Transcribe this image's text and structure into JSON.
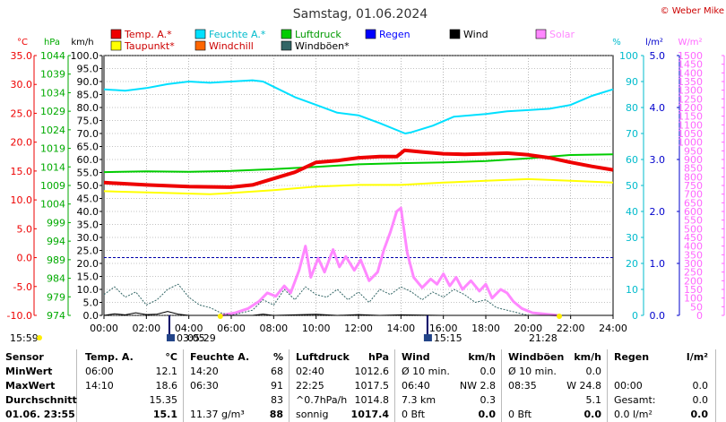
{
  "header": {
    "title": "Samstag, 01.06.2024",
    "copyright": "© Weber Mike"
  },
  "legend": {
    "items": [
      {
        "label": "Temp. A.*",
        "color": "#ee0000",
        "col": 0,
        "row": 0
      },
      {
        "label": "Taupunkt*",
        "color": "#ffff00",
        "col": 0,
        "row": 1
      },
      {
        "label": "Feuchte A.*",
        "color": "#00e0ff",
        "col": 1,
        "row": 0
      },
      {
        "label": "Windchill",
        "color": "#ff6600",
        "col": 1,
        "row": 1
      },
      {
        "label": "Luftdruck",
        "color": "#00cc00",
        "col": 2,
        "row": 0
      },
      {
        "label": "Windböen*",
        "color": "#336666",
        "col": 2,
        "row": 1
      },
      {
        "label": "Regen",
        "color": "#0000ff",
        "col": 3,
        "row": 0
      },
      {
        "label": "Wind",
        "color": "#000000",
        "col": 4,
        "row": 0
      },
      {
        "label": "Solar",
        "color": "#ff88ff",
        "col": 5,
        "row": 0
      }
    ]
  },
  "chart_data": {
    "type": "line",
    "x_range": [
      "00:00",
      "24:00"
    ],
    "x_ticks": [
      "00:00",
      "02:00",
      "04:00",
      "06:00",
      "08:00",
      "10:00",
      "12:00",
      "14:00",
      "16:00",
      "18:00",
      "20:00",
      "22:00",
      "24:00"
    ],
    "axes": {
      "temp": {
        "unit": "°C",
        "color": "#ee0000",
        "ticks": [
          "35.0",
          "30.0",
          "25.0",
          "20.0",
          "15.0",
          "10.0",
          "5.0",
          "0.0",
          "-5.0",
          "-10.0"
        ],
        "range": [
          -10,
          35
        ]
      },
      "pressure": {
        "unit": "hPa",
        "color": "#00aa00",
        "ticks": [
          "1044",
          "1039",
          "1034",
          "1029",
          "1024",
          "1019",
          "1014",
          "1009",
          "1004",
          "999",
          "994",
          "989",
          "984",
          "979",
          "974"
        ],
        "range": [
          974,
          1044
        ]
      },
      "wind": {
        "unit": "km/h",
        "color": "#000000",
        "ticks": [
          "100.0",
          "95.0",
          "90.0",
          "85.0",
          "80.0",
          "75.0",
          "70.0",
          "65.0",
          "60.0",
          "55.0",
          "50.0",
          "45.0",
          "40.0",
          "35.0",
          "30.0",
          "25.0",
          "20.0",
          "15.0",
          "10.0",
          "5.0",
          "0.0"
        ],
        "range": [
          0,
          100
        ]
      },
      "humidity": {
        "unit": "%",
        "color": "#00ccdd",
        "ticks": [
          "100",
          "90",
          "80",
          "70",
          "60",
          "50",
          "40",
          "30",
          "20",
          "10",
          "0"
        ],
        "range": [
          0,
          100
        ]
      },
      "rain": {
        "unit": "l/m²",
        "color": "#0000cc",
        "ticks": [
          "5.0",
          "4.0",
          "3.0",
          "2.0",
          "1.0",
          "0.0"
        ],
        "range": [
          0,
          5
        ]
      },
      "solar": {
        "unit": "W/m²",
        "color": "#ff66ff",
        "ticks": [
          "1500",
          "1450",
          "1400",
          "1350",
          "1300",
          "1250",
          "1200",
          "1150",
          "1100",
          "1050",
          "1000",
          "950",
          "900",
          "850",
          "800",
          "750",
          "700",
          "650",
          "600",
          "550",
          "500",
          "450",
          "400",
          "350",
          "300",
          "250",
          "200",
          "150",
          "100",
          "50",
          "0"
        ],
        "range": [
          0,
          1500
        ]
      }
    },
    "series": [
      {
        "name": "Temp. A.*",
        "axis": "temp",
        "color": "#ee0000",
        "width": 4,
        "points": [
          [
            0,
            13.0
          ],
          [
            2,
            12.6
          ],
          [
            4,
            12.3
          ],
          [
            6,
            12.2
          ],
          [
            7,
            12.6
          ],
          [
            8,
            13.7
          ],
          [
            9,
            14.8
          ],
          [
            10,
            16.5
          ],
          [
            11,
            16.8
          ],
          [
            12,
            17.3
          ],
          [
            13,
            17.5
          ],
          [
            13.8,
            17.5
          ],
          [
            14.17,
            18.6
          ],
          [
            15,
            18.3
          ],
          [
            16,
            18.0
          ],
          [
            17,
            17.9
          ],
          [
            18,
            18.0
          ],
          [
            19,
            18.1
          ],
          [
            20,
            17.8
          ],
          [
            21,
            17.3
          ],
          [
            22,
            16.5
          ],
          [
            23,
            15.8
          ],
          [
            24,
            15.2
          ]
        ]
      },
      {
        "name": "Taupunkt*",
        "axis": "temp",
        "color": "#ffff00",
        "width": 2,
        "points": [
          [
            0,
            11.5
          ],
          [
            3,
            11.2
          ],
          [
            5,
            11.0
          ],
          [
            6,
            11.2
          ],
          [
            8,
            11.7
          ],
          [
            10,
            12.3
          ],
          [
            12,
            12.6
          ],
          [
            14,
            12.6
          ],
          [
            16,
            13.0
          ],
          [
            18,
            13.3
          ],
          [
            20,
            13.6
          ],
          [
            22,
            13.3
          ],
          [
            24,
            13.0
          ]
        ]
      },
      {
        "name": "Luftdruck",
        "axis": "pressure",
        "color": "#00cc00",
        "width": 2,
        "points": [
          [
            0,
            1012.6
          ],
          [
            2,
            1012.8
          ],
          [
            4,
            1012.7
          ],
          [
            6,
            1012.9
          ],
          [
            8,
            1013.4
          ],
          [
            10,
            1014.0
          ],
          [
            12,
            1014.7
          ],
          [
            14,
            1015.0
          ],
          [
            16,
            1015.2
          ],
          [
            18,
            1015.6
          ],
          [
            20,
            1016.3
          ],
          [
            22,
            1017.2
          ],
          [
            24,
            1017.4
          ]
        ]
      },
      {
        "name": "Feuchte A.*",
        "axis": "humidity",
        "color": "#00e0ff",
        "width": 2,
        "points": [
          [
            0,
            87
          ],
          [
            1,
            86.5
          ],
          [
            2,
            87.5
          ],
          [
            3,
            89
          ],
          [
            4,
            90
          ],
          [
            5,
            89.5
          ],
          [
            6,
            90
          ],
          [
            7,
            90.5
          ],
          [
            7.5,
            90
          ],
          [
            8,
            88
          ],
          [
            9,
            84
          ],
          [
            10,
            81
          ],
          [
            11,
            78
          ],
          [
            12,
            77
          ],
          [
            13,
            74
          ],
          [
            14.2,
            70
          ],
          [
            14.5,
            70.5
          ],
          [
            15.5,
            73
          ],
          [
            16.5,
            76.5
          ],
          [
            18,
            77.5
          ],
          [
            19,
            78.5
          ],
          [
            20,
            79
          ],
          [
            21,
            79.5
          ],
          [
            22,
            81
          ],
          [
            23,
            84.5
          ],
          [
            24,
            87
          ]
        ]
      },
      {
        "name": "Solar",
        "axis": "solar",
        "color": "#ff88ff",
        "width": 3,
        "points": [
          [
            5.5,
            0
          ],
          [
            6.2,
            15
          ],
          [
            6.8,
            40
          ],
          [
            7.3,
            80
          ],
          [
            7.7,
            130
          ],
          [
            8.1,
            110
          ],
          [
            8.5,
            170
          ],
          [
            8.8,
            130
          ],
          [
            9.2,
            260
          ],
          [
            9.5,
            400
          ],
          [
            9.75,
            220
          ],
          [
            10.1,
            330
          ],
          [
            10.4,
            250
          ],
          [
            10.8,
            380
          ],
          [
            11.1,
            280
          ],
          [
            11.4,
            340
          ],
          [
            11.8,
            260
          ],
          [
            12.1,
            320
          ],
          [
            12.5,
            200
          ],
          [
            12.9,
            250
          ],
          [
            13.2,
            380
          ],
          [
            13.5,
            480
          ],
          [
            13.8,
            600
          ],
          [
            14.0,
            620
          ],
          [
            14.3,
            360
          ],
          [
            14.6,
            220
          ],
          [
            15.0,
            160
          ],
          [
            15.4,
            210
          ],
          [
            15.7,
            180
          ],
          [
            16.0,
            240
          ],
          [
            16.3,
            170
          ],
          [
            16.6,
            220
          ],
          [
            16.9,
            150
          ],
          [
            17.3,
            200
          ],
          [
            17.7,
            140
          ],
          [
            18.0,
            180
          ],
          [
            18.3,
            100
          ],
          [
            18.7,
            150
          ],
          [
            19.0,
            130
          ],
          [
            19.3,
            80
          ],
          [
            19.7,
            40
          ],
          [
            20.2,
            15
          ],
          [
            21.0,
            5
          ],
          [
            21.4,
            0
          ]
        ]
      },
      {
        "name": "Windböen*",
        "axis": "wind",
        "color": "#336666",
        "width": 1,
        "dash": true,
        "points": [
          [
            0,
            8
          ],
          [
            0.5,
            11
          ],
          [
            1,
            7
          ],
          [
            1.5,
            9
          ],
          [
            2,
            4
          ],
          [
            2.5,
            6
          ],
          [
            3,
            10
          ],
          [
            3.5,
            12
          ],
          [
            4,
            7
          ],
          [
            4.5,
            4
          ],
          [
            5,
            3
          ],
          [
            5.5,
            1
          ],
          [
            6,
            0
          ],
          [
            7,
            2
          ],
          [
            7.5,
            6
          ],
          [
            8,
            4
          ],
          [
            8.5,
            10
          ],
          [
            9,
            6
          ],
          [
            9.5,
            11
          ],
          [
            10,
            8
          ],
          [
            10.5,
            7
          ],
          [
            11,
            10
          ],
          [
            11.5,
            6
          ],
          [
            12,
            9
          ],
          [
            12.5,
            5
          ],
          [
            13,
            10
          ],
          [
            13.5,
            8
          ],
          [
            14,
            11
          ],
          [
            14.5,
            9
          ],
          [
            15,
            6
          ],
          [
            15.5,
            9
          ],
          [
            16,
            7
          ],
          [
            16.5,
            10
          ],
          [
            17,
            8
          ],
          [
            17.5,
            5
          ],
          [
            18,
            6
          ],
          [
            18.5,
            3
          ],
          [
            19,
            2
          ],
          [
            19.5,
            1
          ],
          [
            20,
            0
          ],
          [
            24,
            0
          ]
        ]
      },
      {
        "name": "Wind",
        "axis": "wind",
        "color": "#000000",
        "width": 1,
        "points": [
          [
            0,
            0
          ],
          [
            0.5,
            0.6
          ],
          [
            1,
            0.2
          ],
          [
            1.5,
            1
          ],
          [
            2,
            0.3
          ],
          [
            2.5,
            0.5
          ],
          [
            3,
            1.5
          ],
          [
            3.5,
            0.5
          ],
          [
            4,
            0
          ],
          [
            7,
            0
          ],
          [
            7.5,
            0.5
          ],
          [
            8,
            0
          ],
          [
            10,
            0.4
          ],
          [
            11,
            0
          ],
          [
            12,
            0.3
          ],
          [
            13,
            0
          ],
          [
            14,
            0.2
          ],
          [
            16,
            0
          ],
          [
            24,
            0
          ]
        ]
      }
    ],
    "reference_lines": [
      {
        "axis": "temp",
        "value": 0.0,
        "color": "#0000aa",
        "dash": true
      }
    ]
  },
  "markers": {
    "sunrise": "05:29",
    "sunset": "21:28",
    "moonrise": "03:05",
    "moonset": "15:15",
    "left_time": "15:59"
  },
  "table": {
    "headers": [
      {
        "text": "Sensor",
        "col": "c0"
      },
      {
        "text": "Temp. A.",
        "col": "c1"
      },
      {
        "text": "°C",
        "col": "c1r"
      },
      {
        "text": "Feuchte A.",
        "col": "c2"
      },
      {
        "text": "%",
        "col": "c2r"
      },
      {
        "text": "Luftdruck",
        "col": "c3"
      },
      {
        "text": "hPa",
        "col": "c3r"
      },
      {
        "text": "Wind",
        "col": "c4"
      },
      {
        "text": "km/h",
        "col": "c4r"
      },
      {
        "text": "Windböen",
        "col": "c5"
      },
      {
        "text": "km/h",
        "col": "c5r"
      },
      {
        "text": "Regen",
        "col": "c6"
      },
      {
        "text": "l/m²",
        "col": "c6r"
      }
    ],
    "rows": [
      {
        "label": "MinWert",
        "cells": [
          "06:00",
          "12.1",
          "14:20",
          "68",
          "02:40",
          "1012.6",
          "Ø 10 min.",
          "0.0",
          "Ø 10 min.",
          "0.0",
          "",
          ""
        ]
      },
      {
        "label": "MaxWert",
        "cells": [
          "14:10",
          "18.6",
          "06:30",
          "91",
          "22:25",
          "1017.5",
          "06:40",
          "NW 2.8",
          "08:35",
          "W 24.8",
          "00:00",
          "0.0"
        ]
      },
      {
        "label": "Durchschnitt",
        "cells": [
          "",
          "15.35",
          "",
          "83",
          "^0.7hPa/h",
          "1014.8",
          "7.3 km",
          "0.3",
          "",
          "5.1",
          "Gesamt:",
          "0.0"
        ]
      },
      {
        "label": "01.06. 23:55",
        "cells": [
          "",
          "15.1",
          "11.37 g/m³",
          "88",
          "sonnig",
          "1017.4",
          "0 Bft",
          "0.0",
          "0 Bft",
          "0.0",
          "0.0 l/m²",
          "0.0"
        ]
      }
    ]
  }
}
